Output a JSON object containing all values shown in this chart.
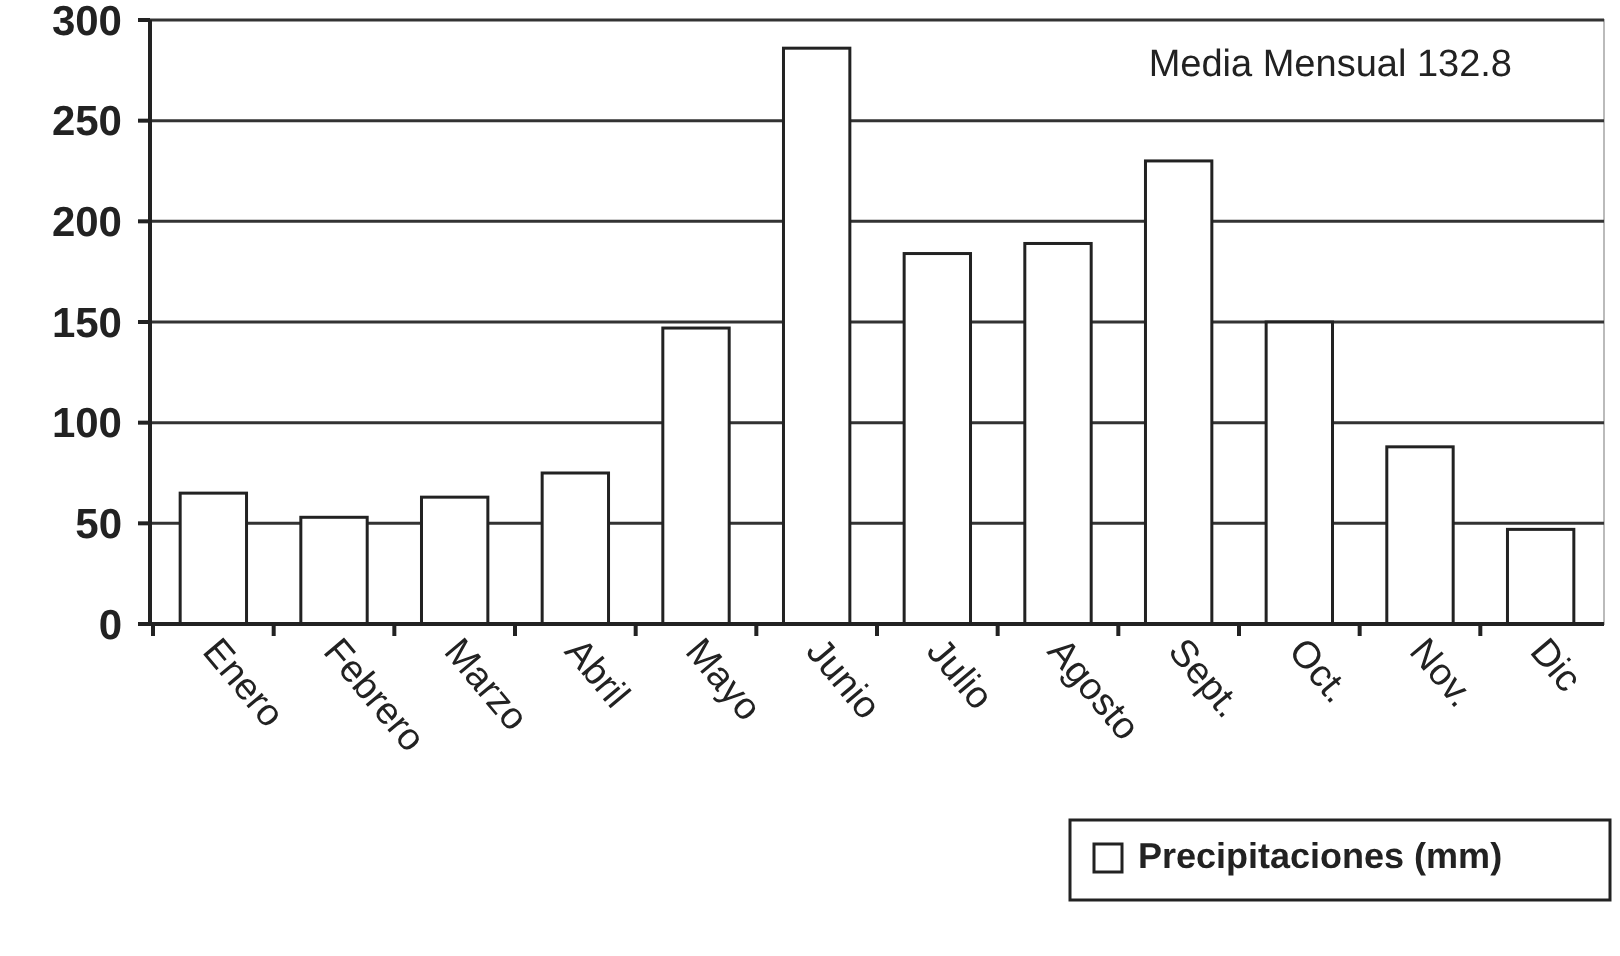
{
  "chart_data": {
    "type": "bar",
    "categories": [
      "Enero",
      "Febrero",
      "Marzo",
      "Abril",
      "Mayo",
      "Junio",
      "Julio",
      "Agosto",
      "Sept.",
      "Oct.",
      "Nov.",
      "Dic"
    ],
    "series": [
      {
        "name": "Precipitaciones (mm)",
        "color": "#ffffff",
        "values": [
          65,
          53,
          63,
          75,
          147,
          286,
          184,
          189,
          230,
          150,
          88,
          47
        ]
      }
    ],
    "ylim": [
      0,
      300
    ],
    "yticks": [
      0,
      50,
      100,
      150,
      200,
      250,
      300
    ],
    "grid": "y",
    "legend": "bottom right",
    "annotations": [
      "Media Mensual 132.8"
    ]
  }
}
